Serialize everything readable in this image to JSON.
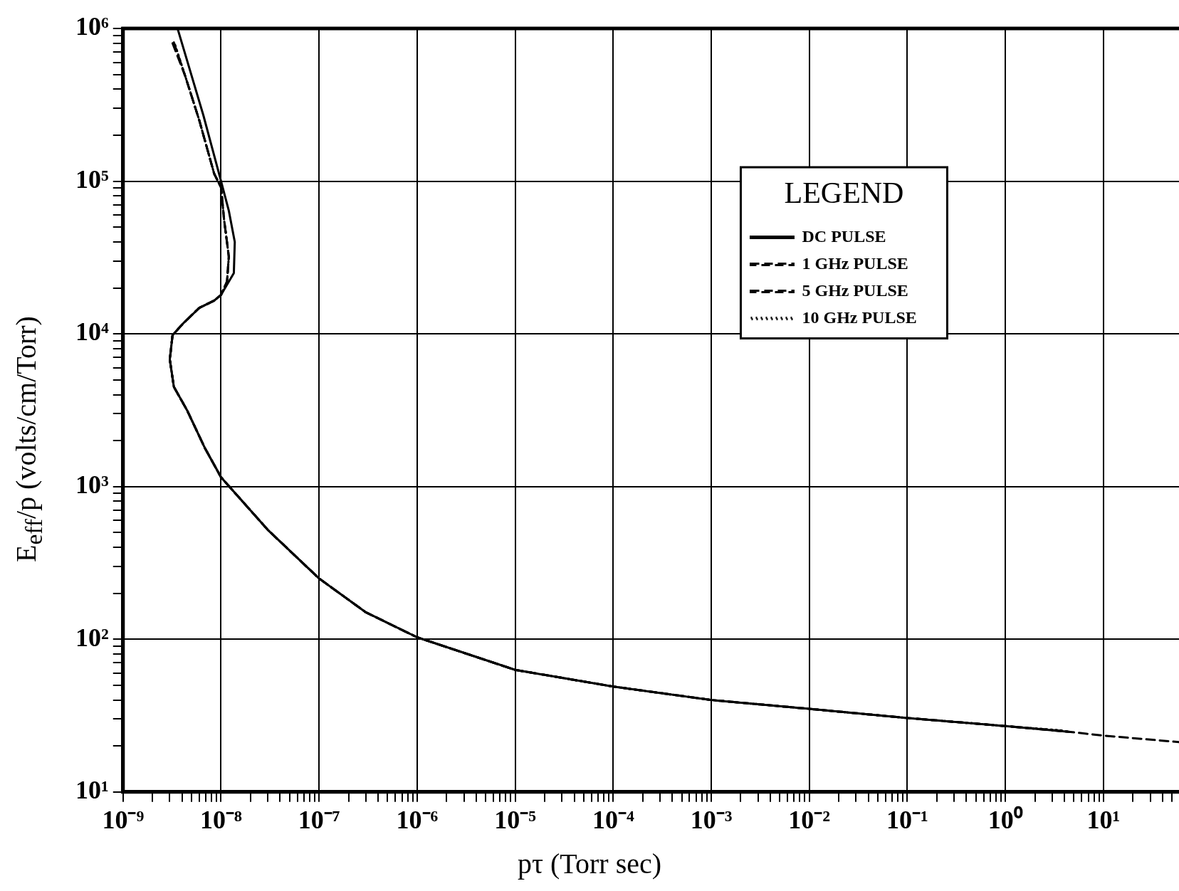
{
  "chart_data": {
    "type": "line",
    "xlabel": "pτ (Torr sec)",
    "ylabel": "E$_{eff}$/p (volts/cm/Torr)",
    "legend_title": "LEGEND",
    "legend": "top right",
    "grid": true,
    "log": "xy",
    "xlim": [
      1e-09,
      59
    ],
    "ylim": [
      10,
      1000000
    ],
    "xticks": [
      {
        "value": 1e-09,
        "label": "10⁻⁹"
      },
      {
        "value": 2e-09,
        "label": null
      },
      {
        "value": 3e-09,
        "label": null
      },
      {
        "value": 4e-09,
        "label": null
      },
      {
        "value": 5e-09,
        "label": null
      },
      {
        "value": 6e-09,
        "label": null
      },
      {
        "value": 7e-09,
        "label": null
      },
      {
        "value": 8e-09,
        "label": null
      },
      {
        "value": 9e-09,
        "label": null
      },
      {
        "value": 1e-08,
        "label": "10⁻⁸"
      },
      {
        "value": 2e-08,
        "label": null
      },
      {
        "value": 3e-08,
        "label": null
      },
      {
        "value": 4e-08,
        "label": null
      },
      {
        "value": 5e-08,
        "label": null
      },
      {
        "value": 6e-08,
        "label": null
      },
      {
        "value": 7e-08,
        "label": null
      },
      {
        "value": 8e-08,
        "label": null
      },
      {
        "value": 9e-08,
        "label": null
      },
      {
        "value": 1e-07,
        "label": "10⁻⁷"
      },
      {
        "value": 2e-07,
        "label": null
      },
      {
        "value": 3e-07,
        "label": null
      },
      {
        "value": 4e-07,
        "label": null
      },
      {
        "value": 5e-07,
        "label": null
      },
      {
        "value": 6e-07,
        "label": null
      },
      {
        "value": 7e-07,
        "label": null
      },
      {
        "value": 8e-07,
        "label": null
      },
      {
        "value": 9e-07,
        "label": null
      },
      {
        "value": 1e-06,
        "label": "10⁻⁶"
      },
      {
        "value": 2e-06,
        "label": null
      },
      {
        "value": 3e-06,
        "label": null
      },
      {
        "value": 4e-06,
        "label": null
      },
      {
        "value": 5e-06,
        "label": null
      },
      {
        "value": 6e-06,
        "label": null
      },
      {
        "value": 7e-06,
        "label": null
      },
      {
        "value": 8e-06,
        "label": null
      },
      {
        "value": 9e-06,
        "label": null
      },
      {
        "value": 1e-05,
        "label": "10⁻⁵"
      },
      {
        "value": 2e-05,
        "label": null
      },
      {
        "value": 3e-05,
        "label": null
      },
      {
        "value": 4e-05,
        "label": null
      },
      {
        "value": 5e-05,
        "label": null
      },
      {
        "value": 6e-05,
        "label": null
      },
      {
        "value": 7e-05,
        "label": null
      },
      {
        "value": 8e-05,
        "label": null
      },
      {
        "value": 9e-05,
        "label": null
      },
      {
        "value": 0.0001,
        "label": "10⁻⁴"
      },
      {
        "value": 0.0002,
        "label": null
      },
      {
        "value": 0.0003,
        "label": null
      },
      {
        "value": 0.0004,
        "label": null
      },
      {
        "value": 0.0005,
        "label": null
      },
      {
        "value": 0.0006,
        "label": null
      },
      {
        "value": 0.0007,
        "label": null
      },
      {
        "value": 0.0008,
        "label": null
      },
      {
        "value": 0.0009,
        "label": null
      },
      {
        "value": 0.001,
        "label": "10⁻³"
      },
      {
        "value": 0.002,
        "label": null
      },
      {
        "value": 0.003,
        "label": null
      },
      {
        "value": 0.004,
        "label": null
      },
      {
        "value": 0.005,
        "label": null
      },
      {
        "value": 0.006,
        "label": null
      },
      {
        "value": 0.007,
        "label": null
      },
      {
        "value": 0.008,
        "label": null
      },
      {
        "value": 0.009,
        "label": null
      },
      {
        "value": 0.01,
        "label": "10⁻²"
      },
      {
        "value": 0.02,
        "label": null
      },
      {
        "value": 0.03,
        "label": null
      },
      {
        "value": 0.04,
        "label": null
      },
      {
        "value": 0.05,
        "label": null
      },
      {
        "value": 0.06,
        "label": null
      },
      {
        "value": 0.07,
        "label": null
      },
      {
        "value": 0.08,
        "label": null
      },
      {
        "value": 0.09,
        "label": null
      },
      {
        "value": 0.1,
        "label": "10⁻¹"
      },
      {
        "value": 0.2,
        "label": null
      },
      {
        "value": 0.3,
        "label": null
      },
      {
        "value": 0.4,
        "label": null
      },
      {
        "value": 0.5,
        "label": null
      },
      {
        "value": 0.6,
        "label": null
      },
      {
        "value": 0.7,
        "label": null
      },
      {
        "value": 0.8,
        "label": null
      },
      {
        "value": 0.9,
        "label": null
      },
      {
        "value": 1,
        "label": "10⁰"
      },
      {
        "value": 2,
        "label": null
      },
      {
        "value": 3,
        "label": null
      },
      {
        "value": 4,
        "label": null
      },
      {
        "value": 5,
        "label": null
      },
      {
        "value": 6,
        "label": null
      },
      {
        "value": 7,
        "label": null
      },
      {
        "value": 8,
        "label": null
      },
      {
        "value": 9,
        "label": null
      },
      {
        "value": 10,
        "label": "10¹"
      },
      {
        "value": 20,
        "label": null
      },
      {
        "value": 30,
        "label": null
      },
      {
        "value": 40,
        "label": null
      },
      {
        "value": 50,
        "label": null
      }
    ],
    "yticks": [
      {
        "value": 10,
        "label": "10¹"
      },
      {
        "value": 20,
        "label": null
      },
      {
        "value": 30,
        "label": null
      },
      {
        "value": 40,
        "label": null
      },
      {
        "value": 50,
        "label": null
      },
      {
        "value": 60,
        "label": null
      },
      {
        "value": 70,
        "label": null
      },
      {
        "value": 80,
        "label": null
      },
      {
        "value": 90,
        "label": null
      },
      {
        "value": 100,
        "label": "10²"
      },
      {
        "value": 200,
        "label": null
      },
      {
        "value": 300,
        "label": null
      },
      {
        "value": 400,
        "label": null
      },
      {
        "value": 500,
        "label": null
      },
      {
        "value": 600,
        "label": null
      },
      {
        "value": 700,
        "label": null
      },
      {
        "value": 800,
        "label": null
      },
      {
        "value": 900,
        "label": null
      },
      {
        "value": 1000,
        "label": "10³"
      },
      {
        "value": 2000,
        "label": null
      },
      {
        "value": 3000,
        "label": null
      },
      {
        "value": 4000,
        "label": null
      },
      {
        "value": 5000,
        "label": null
      },
      {
        "value": 6000,
        "label": null
      },
      {
        "value": 7000,
        "label": null
      },
      {
        "value": 8000,
        "label": null
      },
      {
        "value": 9000,
        "label": null
      },
      {
        "value": 10000,
        "label": "10⁴"
      },
      {
        "value": 20000,
        "label": null
      },
      {
        "value": 30000,
        "label": null
      },
      {
        "value": 40000,
        "label": null
      },
      {
        "value": 50000,
        "label": null
      },
      {
        "value": 60000,
        "label": null
      },
      {
        "value": 70000,
        "label": null
      },
      {
        "value": 80000,
        "label": null
      },
      {
        "value": 90000,
        "label": null
      },
      {
        "value": 100000,
        "label": "10⁵"
      },
      {
        "value": 200000,
        "label": null
      },
      {
        "value": 300000,
        "label": null
      },
      {
        "value": 400000,
        "label": null
      },
      {
        "value": 500000,
        "label": null
      },
      {
        "value": 600000,
        "label": null
      },
      {
        "value": 700000,
        "label": null
      },
      {
        "value": 800000,
        "label": null
      },
      {
        "value": 900000,
        "label": null
      },
      {
        "value": 1000000,
        "label": "10⁶"
      }
    ],
    "series": [
      {
        "name": "DC PULSE",
        "color": "#000000",
        "line_style": "solid",
        "x": [
          3.6e-09,
          6.6e-09,
          1e-08,
          1.2e-08,
          1.38e-08,
          1.35e-08,
          1e-08,
          8.5e-09,
          6e-09,
          4.1e-09,
          3.2e-09,
          3e-09,
          3.3e-09,
          4.5e-09,
          6.8e-09,
          1e-08,
          3e-08,
          1e-07,
          3e-07,
          1e-06,
          1e-05,
          0.0001,
          0.001,
          0.01,
          0.1,
          1,
          4.6
        ],
        "values": [
          1000000,
          270000,
          100000,
          64000,
          40000,
          25000,
          18000,
          16500,
          14800,
          11700,
          9800,
          6800,
          4500,
          3160,
          1800,
          1150,
          520,
          250,
          150,
          103,
          63,
          49,
          40,
          35,
          30.5,
          27,
          24.7
        ]
      },
      {
        "name": "1 GHz PULSE",
        "color": "#000000",
        "line_style": "dashed",
        "x": [
          3.3e-09,
          4.3e-09,
          6e-09,
          8.5e-09,
          1e-08,
          1.07e-08,
          1.2e-08,
          1.15e-08,
          1e-08,
          8.5e-09,
          6e-09,
          4.1e-09,
          3.2e-09,
          3e-09,
          3.3e-09,
          4.5e-09,
          6.8e-09,
          1e-08,
          3e-08,
          1e-07,
          3e-07,
          1e-06,
          1e-05,
          0.0001,
          0.001,
          0.01,
          0.1,
          1,
          4.6,
          10,
          59
        ],
        "values": [
          810000,
          490000,
          250000,
          112000,
          91000,
          57000,
          32000,
          22000,
          18000,
          16500,
          14800,
          11700,
          9800,
          6800,
          4500,
          3160,
          1800,
          1150,
          520,
          250,
          150,
          103,
          63,
          49,
          40,
          35,
          30.5,
          27,
          24.7,
          23.4,
          21.2
        ]
      },
      {
        "name": "5 GHz PULSE",
        "color": "#000000",
        "line_style": "dashed",
        "x": [
          3.2e-09,
          4.3e-09,
          6e-09,
          8.5e-09,
          1e-08,
          1.07e-08,
          1.2e-08,
          1.15e-08,
          1e-08,
          8.5e-09,
          6e-09,
          4.1e-09,
          3.2e-09,
          3e-09,
          3.3e-09,
          4.5e-09,
          6.8e-09,
          1e-08,
          3e-08,
          1e-07,
          3e-07,
          1e-06,
          1e-05,
          0.0001,
          0.001,
          0.01,
          0.1,
          1,
          4.3
        ],
        "values": [
          800000,
          490000,
          250000,
          112000,
          91000,
          57000,
          32000,
          22000,
          18000,
          16500,
          14800,
          11700,
          9800,
          6800,
          4500,
          3160,
          1800,
          1150,
          520,
          250,
          150,
          103,
          63,
          49,
          40,
          35,
          30.5,
          27,
          24.9
        ]
      },
      {
        "name": "10 GHz PULSE",
        "color": "#000000",
        "line_style": "dotted",
        "x": [
          3.4e-09,
          4.3e-09,
          6e-09,
          8.5e-09,
          1e-08,
          1.07e-08,
          1.2e-08,
          1.15e-08,
          1e-08,
          8.5e-09,
          6e-09,
          4.1e-09,
          3.2e-09,
          3e-09,
          3.3e-09,
          4.5e-09,
          6.8e-09,
          1e-08,
          3e-08,
          1e-07,
          3e-07,
          1e-06,
          1e-05,
          0.0001,
          0.001,
          0.01,
          0.1,
          1,
          4
        ],
        "values": [
          780000,
          490000,
          250000,
          112000,
          91000,
          57000,
          32000,
          22000,
          18000,
          16500,
          14800,
          11700,
          9800,
          6800,
          4500,
          3160,
          1800,
          1150,
          520,
          250,
          150,
          103,
          63,
          49,
          40,
          35,
          30.5,
          27,
          25.2
        ]
      }
    ]
  }
}
